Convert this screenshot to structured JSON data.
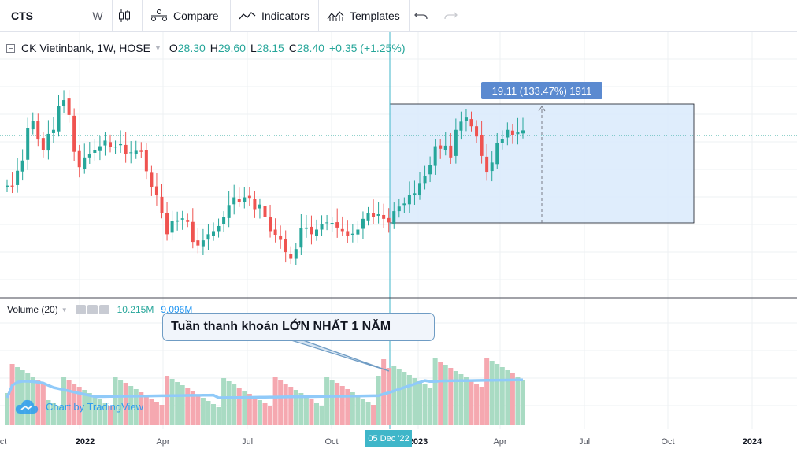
{
  "toolbar": {
    "symbol": "CTS",
    "interval": "W",
    "compare_label": "Compare",
    "indicators_label": "Indicators",
    "templates_label": "Templates",
    "icons": [
      "candlestick-icon",
      "compare-icon",
      "indicators-icon",
      "templates-icon",
      "undo-icon",
      "redo-icon"
    ]
  },
  "legend": {
    "title": "CK Vietinbank, 1W, HOSE",
    "open_key": "O",
    "open": "28.30",
    "high_key": "H",
    "high": "29.60",
    "low_key": "L",
    "low": "28.15",
    "close_key": "C",
    "close": "28.40",
    "change": "+0.35 (+1.25%)"
  },
  "measure": {
    "label": "19.11 (133.47%) 1911"
  },
  "volume": {
    "title": "Volume (20)",
    "value": "10.215M",
    "ma_value": "9.096M"
  },
  "callout": {
    "text": "Tuần thanh khoản LỚN NHẤT 1 NĂM"
  },
  "watermark": {
    "text": "Chart by TradingView"
  },
  "xaxis": {
    "labels": [
      {
        "text": "ct",
        "bold": false
      },
      {
        "text": "2022",
        "bold": true
      },
      {
        "text": "Apr",
        "bold": false
      },
      {
        "text": "Jul",
        "bold": false
      },
      {
        "text": "Oct",
        "bold": false
      },
      {
        "text": "2023",
        "bold": true
      },
      {
        "text": "Apr",
        "bold": false
      },
      {
        "text": "Jul",
        "bold": false
      },
      {
        "text": "Oct",
        "bold": false
      },
      {
        "text": "2024",
        "bold": true
      }
    ],
    "crosshair_date": "05 Dec '22"
  },
  "colors": {
    "up": "#26a69a",
    "down": "#ef5350",
    "up_vol": "#a9dbc3",
    "down_vol": "#f5a8b0",
    "volume_ma": "#90caf9",
    "measure_fill": "#d9eafb",
    "crosshair": "#3fb6c9"
  },
  "chart_data": {
    "type": "candlestick",
    "interval": "1W",
    "close_series": [
      17.6,
      17.4,
      20.5,
      22.5,
      28.9,
      30.2,
      26.6,
      24.6,
      27.7,
      28.5,
      33.1,
      34.3,
      31.4,
      24.2,
      21.2,
      23.1,
      23.7,
      24.5,
      25.3,
      26.4,
      25.1,
      25.2,
      25.7,
      23.8,
      24.1,
      24.4,
      24.2,
      20.4,
      17.3,
      15.7,
      12.2,
      8.1,
      10.7,
      10.8,
      11.2,
      10.5,
      6.6,
      5.9,
      6.9,
      8.1,
      8.7,
      9.7,
      11.4,
      13.8,
      15.3,
      14.4,
      15.3,
      15.2,
      13.0,
      13.9,
      11.4,
      8.7,
      8.0,
      7.0,
      4.6,
      3.3,
      5.2,
      9.3,
      9.4,
      8.1,
      9.0,
      10.1,
      10.4,
      10.3,
      9.4,
      8.7,
      7.7,
      8.2,
      9.0,
      11.1,
      12.2,
      11.4,
      12.0,
      11.1,
      10.4,
      12.6,
      13.5,
      14.1,
      15.7,
      16.1,
      18.1,
      19.5,
      21.6,
      25.3,
      24.8,
      25.4,
      23.1,
      28.5,
      30.1,
      30.9,
      29.2,
      27.2,
      23.4,
      20.3,
      22.1,
      25.9,
      26.7,
      28.5,
      27.5,
      28.1,
      28.4
    ]
  }
}
